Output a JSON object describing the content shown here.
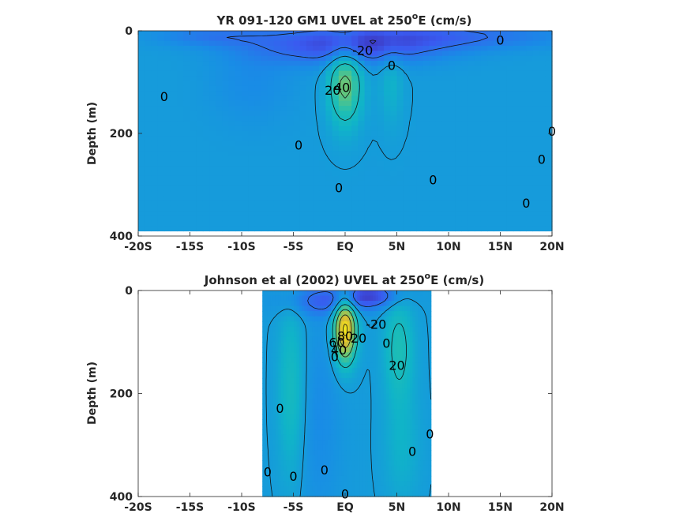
{
  "chart_data": [
    {
      "type": "heatmap",
      "title_main": "YR 091-120 GM1 UVEL at 250",
      "title_sup": "o",
      "title_tail": "E (cm/s)",
      "ylabel": "Depth (m)",
      "xlim": [
        -20,
        20
      ],
      "ylim": [
        0,
        400
      ],
      "x_ticks": [
        -20,
        -15,
        -10,
        -5,
        0,
        5,
        10,
        15,
        20
      ],
      "x_tick_labels": [
        "-20S",
        "-15S",
        "-10S",
        "-5S",
        "EQ",
        "5N",
        "10N",
        "15N",
        "20N"
      ],
      "y_ticks": [
        0,
        200,
        400
      ],
      "y_tick_labels": [
        "0",
        "200",
        "400"
      ],
      "data_extent": {
        "lat": [
          -20,
          20
        ],
        "depth": [
          0,
          390
        ]
      },
      "features": [
        {
          "lat": 0,
          "depth": 105,
          "value": 45,
          "slat": 1.1,
          "sdepth": 55
        },
        {
          "lat": 0.5,
          "depth": 30,
          "value": -35,
          "slat": 6,
          "sdepth": 25
        },
        {
          "lat": 10,
          "depth": 10,
          "value": -20,
          "slat": 8,
          "sdepth": 18
        },
        {
          "lat": -13,
          "depth": 10,
          "value": -15,
          "slat": 4,
          "sdepth": 15
        },
        {
          "lat": 4.5,
          "depth": 100,
          "value": 12,
          "slat": 0.8,
          "sdepth": 60
        },
        {
          "lat": -9,
          "depth": 100,
          "value": -8,
          "slat": 3,
          "sdepth": 60
        }
      ],
      "contour_labels": [
        {
          "text": "0",
          "lat": -17.5,
          "depth": 128
        },
        {
          "text": "-20",
          "lat": 1.7,
          "depth": 38
        },
        {
          "text": "40",
          "lat": -0.3,
          "depth": 110
        },
        {
          "text": "20",
          "lat": -1.2,
          "depth": 115
        },
        {
          "text": "0",
          "lat": 4.5,
          "depth": 67
        },
        {
          "text": "0",
          "lat": 15,
          "depth": 18
        },
        {
          "text": "0",
          "lat": -4.5,
          "depth": 222
        },
        {
          "text": "0",
          "lat": -0.6,
          "depth": 305
        },
        {
          "text": "0",
          "lat": 8.5,
          "depth": 290
        },
        {
          "text": "0",
          "lat": 20,
          "depth": 195
        },
        {
          "text": "0",
          "lat": 19,
          "depth": 250
        },
        {
          "text": "0",
          "lat": 17.5,
          "depth": 335
        }
      ]
    },
    {
      "type": "heatmap",
      "title_main": "Johnson et al (2002) UVEL at 250",
      "title_sup": "o",
      "title_tail": "E (cm/s)",
      "ylabel": "Depth (m)",
      "xlim": [
        -20,
        20
      ],
      "ylim": [
        0,
        400
      ],
      "x_ticks": [
        -20,
        -15,
        -10,
        -5,
        0,
        5,
        10,
        15,
        20
      ],
      "x_tick_labels": [
        "-20S",
        "-15S",
        "-10S",
        "-5S",
        "EQ",
        "5N",
        "10N",
        "15N",
        "20N"
      ],
      "y_ticks": [
        0,
        200,
        400
      ],
      "y_tick_labels": [
        "0",
        "200",
        "400"
      ],
      "data_extent": {
        "lat": [
          -8,
          8.3
        ],
        "depth": [
          0,
          400
        ]
      },
      "features": [
        {
          "lat": 0,
          "depth": 75,
          "value": 85,
          "slat": 0.75,
          "sdepth": 45
        },
        {
          "lat": -1.5,
          "depth": 20,
          "value": -25,
          "slat": 3,
          "sdepth": 20
        },
        {
          "lat": 2.5,
          "depth": 10,
          "value": -30,
          "slat": 2,
          "sdepth": 15
        },
        {
          "lat": 5.2,
          "depth": 110,
          "value": 25,
          "slat": 1,
          "sdepth": 70
        },
        {
          "lat": -5.2,
          "depth": 190,
          "value": 20,
          "slat": 0.9,
          "sdepth": 120
        },
        {
          "lat": 5.5,
          "depth": 300,
          "value": 12,
          "slat": 1.2,
          "sdepth": 80
        },
        {
          "lat": -2.5,
          "depth": 250,
          "value": -8,
          "slat": 1.5,
          "sdepth": 150
        }
      ],
      "contour_labels": [
        {
          "text": "-20",
          "lat": 3,
          "depth": 65
        },
        {
          "text": "80",
          "lat": 0,
          "depth": 88
        },
        {
          "text": "60",
          "lat": -0.8,
          "depth": 100
        },
        {
          "text": "20",
          "lat": 1.3,
          "depth": 92
        },
        {
          "text": "40",
          "lat": -0.6,
          "depth": 115
        },
        {
          "text": "0",
          "lat": -1,
          "depth": 128
        },
        {
          "text": "0",
          "lat": 4,
          "depth": 102
        },
        {
          "text": "20",
          "lat": 5,
          "depth": 145
        },
        {
          "text": "0",
          "lat": -6.3,
          "depth": 228
        },
        {
          "text": "0",
          "lat": 8.2,
          "depth": 278
        },
        {
          "text": "0",
          "lat": 6.5,
          "depth": 312
        },
        {
          "text": "0",
          "lat": -7.5,
          "depth": 352
        },
        {
          "text": "0",
          "lat": -5,
          "depth": 360
        },
        {
          "text": "0",
          "lat": -2,
          "depth": 348
        },
        {
          "text": "0",
          "lat": 0,
          "depth": 395
        }
      ]
    }
  ]
}
